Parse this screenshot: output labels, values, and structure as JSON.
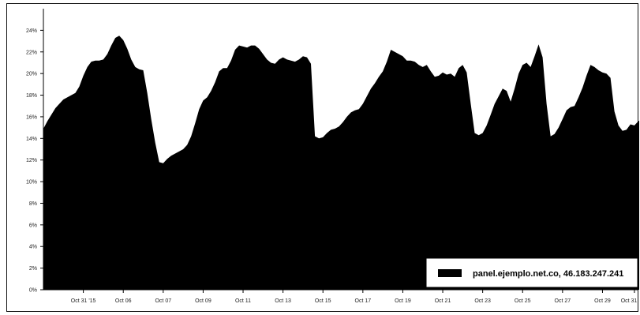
{
  "chart_data": {
    "type": "area",
    "title": "",
    "xlabel": "",
    "ylabel": "",
    "ylim": [
      0,
      26
    ],
    "yticks": [
      "0%",
      "2%",
      "4%",
      "6%",
      "8%",
      "10%",
      "12%",
      "14%",
      "16%",
      "18%",
      "20%",
      "22%",
      "24%"
    ],
    "ytick_values": [
      0,
      2,
      4,
      6,
      8,
      10,
      12,
      14,
      16,
      18,
      20,
      22,
      24
    ],
    "xticks": [
      "Oct 31 '15",
      "Oct 06",
      "Oct 07",
      "Oct 09",
      "Oct 11",
      "Oct 13",
      "Oct 15",
      "Oct 17",
      "Oct 19",
      "Oct 21",
      "Oct 23",
      "Oct 25",
      "Oct 27",
      "Oct 29",
      "Oct 31"
    ],
    "xtick_index": [
      10,
      20,
      30,
      40,
      50,
      60,
      70,
      80,
      90,
      100,
      110,
      120,
      130,
      140,
      148
    ],
    "x_count": 150,
    "grid": false,
    "legend_position": "bottom-right",
    "color": "#000000",
    "series": [
      {
        "name": "panel.ejemplo.net.co, 46.183.247.241",
        "values": [
          14.9,
          15.6,
          16.2,
          16.8,
          17.2,
          17.6,
          17.8,
          18.0,
          18.2,
          18.8,
          19.8,
          20.6,
          21.1,
          21.2,
          21.2,
          21.3,
          21.8,
          22.6,
          23.3,
          23.5,
          23.1,
          22.3,
          21.3,
          20.6,
          20.4,
          20.3,
          18.2,
          15.8,
          13.6,
          11.8,
          11.7,
          12.1,
          12.4,
          12.6,
          12.8,
          13.0,
          13.4,
          14.2,
          15.4,
          16.7,
          17.5,
          17.8,
          18.4,
          19.2,
          20.2,
          20.5,
          20.5,
          21.2,
          22.2,
          22.6,
          22.5,
          22.4,
          22.6,
          22.6,
          22.3,
          21.8,
          21.3,
          21.0,
          20.9,
          21.3,
          21.5,
          21.3,
          21.2,
          21.1,
          21.3,
          21.6,
          21.5,
          20.9,
          14.2,
          14.0,
          14.1,
          14.5,
          14.8,
          14.9,
          15.1,
          15.5,
          16.0,
          16.4,
          16.6,
          16.7,
          17.2,
          17.9,
          18.6,
          19.1,
          19.7,
          20.2,
          21.1,
          22.2,
          22.0,
          21.8,
          21.6,
          21.2,
          21.2,
          21.1,
          20.8,
          20.6,
          20.8,
          20.2,
          19.7,
          19.8,
          20.1,
          19.9,
          20.0,
          19.7,
          20.5,
          20.8,
          20.1,
          17.2,
          14.5,
          14.3,
          14.5,
          15.2,
          16.2,
          17.2,
          17.9,
          18.6,
          18.4,
          17.4,
          18.6,
          20.0,
          20.8,
          21.0,
          20.6,
          21.6,
          22.7,
          21.5,
          17.2,
          14.2,
          14.4,
          15.0,
          15.8,
          16.6,
          16.9,
          17.0,
          17.8,
          18.7,
          19.8,
          20.8,
          20.6,
          20.3,
          20.1,
          20.0,
          19.6,
          16.5,
          15.2,
          14.7,
          14.8,
          15.3,
          15.2,
          15.6,
          15.8
        ]
      }
    ]
  }
}
